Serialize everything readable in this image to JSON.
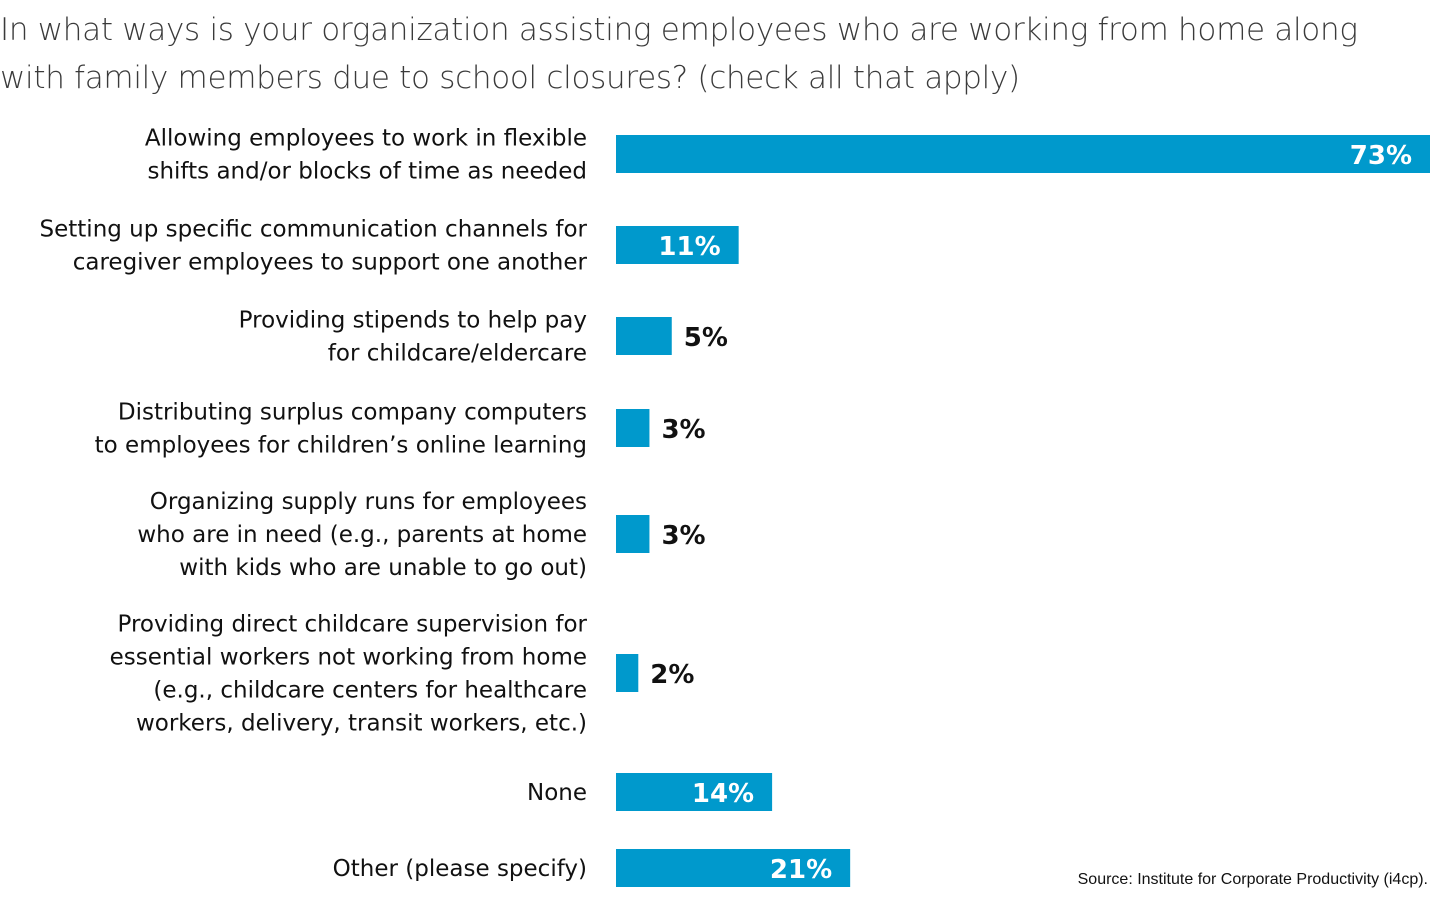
{
  "chart_data": {
    "type": "bar",
    "orientation": "horizontal",
    "title": "In what ways is your organization assisting employees who are working from home along with family members due to school closures? (check all that apply)",
    "categories": [
      [
        "Allowing employees to work in flexible",
        "shifts and/or blocks of time as needed"
      ],
      [
        "Setting up specific communication channels for",
        "caregiver employees to support one another"
      ],
      [
        "Providing stipends to help pay",
        "for childcare/eldercare"
      ],
      [
        "Distributing surplus company computers",
        "to employees for children’s online learning"
      ],
      [
        "Organizing supply runs for employees",
        "who are in need (e.g., parents at home",
        "with kids who are unable to go out)"
      ],
      [
        "Providing direct childcare supervision for",
        "essential workers not working from home",
        "(e.g., childcare centers for healthcare",
        "workers, delivery, transit workers, etc.)"
      ],
      [
        "None"
      ],
      [
        "Other (please specify)"
      ]
    ],
    "values": [
      73,
      11,
      5,
      3,
      3,
      2,
      14,
      21
    ],
    "value_labels": [
      "73%",
      "11%",
      "5%",
      "3%",
      "3%",
      "2%",
      "14%",
      "21%"
    ],
    "unit": "%",
    "xlim": [
      0,
      73
    ],
    "grid": false,
    "legend": "none",
    "bar_color": "#0099cc",
    "source": "Source: Institute for Corporate Productivity (i4cp)."
  }
}
